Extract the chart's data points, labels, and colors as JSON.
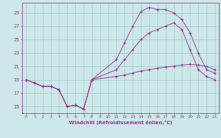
{
  "xlabel": "Windchill (Refroidissement éolien,°C)",
  "background_color": "#cce8e8",
  "line_color": "#993399",
  "grid_color": "#aacccc",
  "xlim": [
    -0.5,
    23.5
  ],
  "ylim": [
    14.0,
    30.5
  ],
  "xticks": [
    0,
    1,
    2,
    3,
    4,
    5,
    6,
    7,
    8,
    9,
    10,
    11,
    12,
    13,
    14,
    15,
    16,
    17,
    18,
    19,
    20,
    21,
    22,
    23
  ],
  "yticks": [
    15,
    17,
    19,
    21,
    23,
    25,
    27,
    29
  ],
  "lines": [
    {
      "x": [
        0,
        1,
        2,
        3,
        4,
        5,
        6,
        7,
        8,
        11,
        12,
        13,
        14,
        15,
        16,
        17,
        18,
        19,
        20,
        21,
        22,
        23
      ],
      "y": [
        19.0,
        18.5,
        18.0,
        18.0,
        17.5,
        15.0,
        15.2,
        14.6,
        19.0,
        22.0,
        24.5,
        27.0,
        29.2,
        29.8,
        29.5,
        29.5,
        29.0,
        28.0,
        26.0,
        23.0,
        20.5,
        20.0
      ]
    },
    {
      "x": [
        0,
        1,
        2,
        3,
        4,
        5,
        6,
        7,
        8,
        11,
        12,
        13,
        14,
        15,
        16,
        17,
        18,
        19,
        20,
        21,
        22,
        23
      ],
      "y": [
        19.0,
        18.5,
        18.0,
        18.0,
        17.5,
        15.0,
        15.2,
        14.6,
        19.0,
        20.5,
        22.0,
        23.5,
        25.0,
        26.0,
        26.5,
        27.0,
        27.5,
        26.5,
        23.5,
        20.5,
        19.5,
        19.0
      ]
    },
    {
      "x": [
        0,
        1,
        2,
        3,
        4,
        5,
        6,
        7,
        8,
        11,
        12,
        13,
        14,
        15,
        16,
        17,
        18,
        19,
        20,
        21,
        22,
        23
      ],
      "y": [
        19.0,
        18.5,
        18.0,
        18.0,
        17.5,
        15.0,
        15.2,
        14.6,
        19.0,
        19.5,
        19.7,
        20.0,
        20.3,
        20.5,
        20.7,
        20.9,
        21.0,
        21.2,
        21.3,
        21.2,
        21.0,
        20.5
      ]
    }
  ]
}
